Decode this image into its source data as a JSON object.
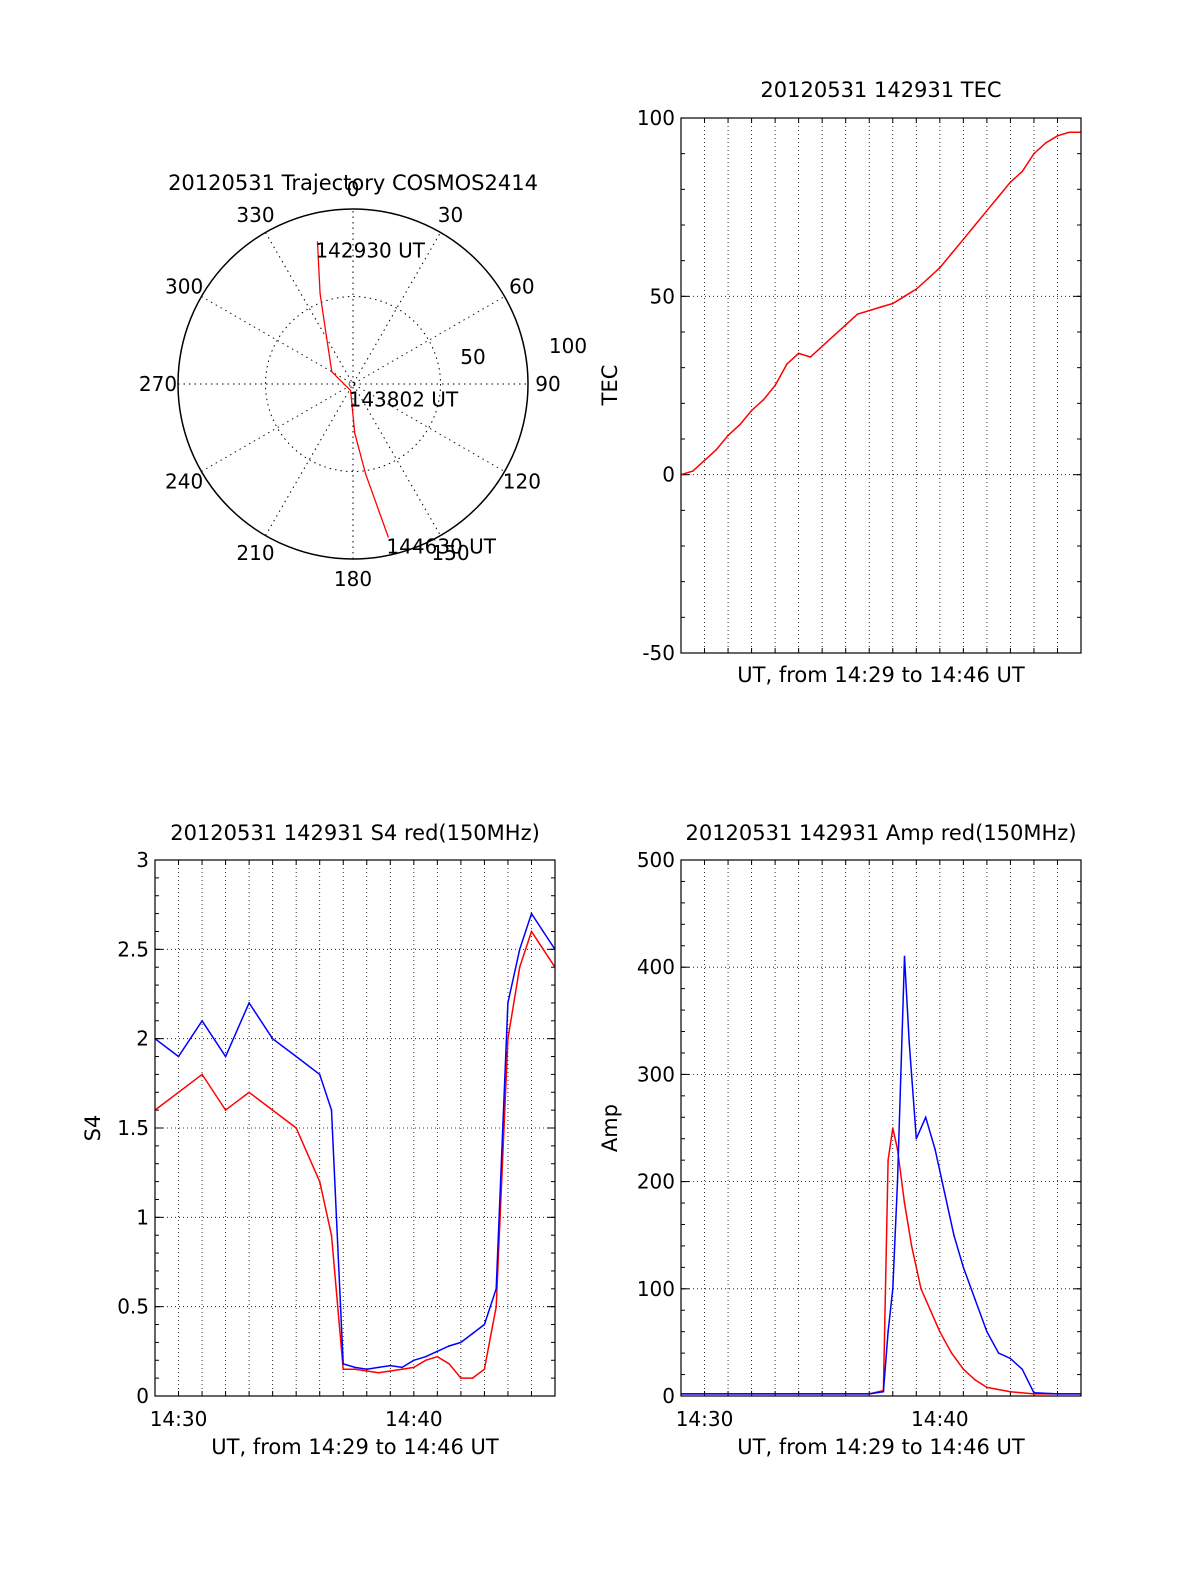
{
  "colors": {
    "red_series": "#ff0000",
    "blue_series": "#0000ff",
    "axes": "#000000",
    "grid": "#000000"
  },
  "chart_data": [
    {
      "type": "polar",
      "title": "20120531 Trajectory COSMOS2414",
      "azimuth_labels": [
        "0",
        "30",
        "60",
        "90",
        "120",
        "150",
        "180",
        "210",
        "240",
        "270",
        "300",
        "330"
      ],
      "radius_labels": [
        "50",
        "100"
      ],
      "rlim": [
        0,
        100
      ],
      "grid": true,
      "series": [
        {
          "color": "#ff0000",
          "points": [
            {
              "az": 346,
              "r": 84,
              "label": "142930 UT"
            },
            {
              "az": 340,
              "r": 55
            },
            {
              "az": 330,
              "r": 30
            },
            {
              "az": 300,
              "r": 14
            },
            {
              "az": 200,
              "r": 4,
              "label": "143802 UT"
            },
            {
              "az": 178,
              "r": 28
            },
            {
              "az": 172,
              "r": 52
            },
            {
              "az": 167,
              "r": 90,
              "label": "144630 UT"
            }
          ]
        }
      ]
    },
    {
      "type": "line",
      "title": "20120531 142931 TEC",
      "xlabel": "UT, from 14:29 to 14:46 UT",
      "ylabel": "TEC",
      "xlim": [
        0,
        17.0
      ],
      "ylim": [
        -50,
        100
      ],
      "yticks": [
        "-50",
        "0",
        "50",
        "100"
      ],
      "xticks": [],
      "grid": true,
      "series": [
        {
          "color": "#ff0000",
          "x": [
            0,
            0.5,
            1,
            1.5,
            2,
            2.5,
            3,
            3.5,
            4,
            4.5,
            5,
            5.5,
            6,
            6.5,
            7,
            7.5,
            8,
            8.5,
            9,
            9.5,
            10,
            10.5,
            11,
            11.5,
            12,
            12.5,
            13,
            13.5,
            14,
            14.5,
            15,
            15.5,
            16,
            16.5,
            17
          ],
          "y": [
            0,
            1,
            4,
            7,
            11,
            14,
            18,
            21,
            25,
            31,
            34,
            33,
            36,
            39,
            42,
            45,
            46,
            47,
            48,
            50,
            52,
            55,
            58,
            62,
            66,
            70,
            74,
            78,
            82,
            85,
            90,
            93,
            95,
            96,
            96
          ]
        }
      ]
    },
    {
      "type": "line",
      "title": "20120531 142931 S4 red(150MHz)",
      "xlabel": "UT, from 14:29 to 14:46 UT",
      "ylabel": "S4",
      "xlim": [
        0,
        17.0
      ],
      "ylim": [
        0,
        3
      ],
      "yticks": [
        "0",
        "0.5",
        "1",
        "1.5",
        "2",
        "2.5",
        "3"
      ],
      "xticks": [
        "14:30",
        "14:40"
      ],
      "xtick_positions": [
        1,
        11
      ],
      "grid": true,
      "series": [
        {
          "name": "",
          "color": "#ff0000",
          "x": [
            0,
            1,
            2,
            3,
            4,
            5,
            6,
            7,
            7.5,
            8,
            8.5,
            9,
            9.5,
            10,
            10.5,
            11,
            11.5,
            12,
            12.5,
            13,
            13.5,
            14,
            14.5,
            15,
            15.5,
            16,
            16.5,
            17
          ],
          "y": [
            1.6,
            1.7,
            1.8,
            1.6,
            1.7,
            1.6,
            1.5,
            1.2,
            0.9,
            0.15,
            0.15,
            0.14,
            0.13,
            0.14,
            0.15,
            0.16,
            0.2,
            0.22,
            0.18,
            0.1,
            0.1,
            0.15,
            0.5,
            2.0,
            2.4,
            2.6,
            2.5,
            2.4
          ]
        },
        {
          "name": "",
          "color": "#0000ff",
          "x": [
            0,
            1,
            2,
            3,
            4,
            5,
            6,
            7,
            7.5,
            8,
            8.5,
            9,
            9.5,
            10,
            10.5,
            11,
            11.5,
            12,
            12.5,
            13,
            13.5,
            14,
            14.5,
            15,
            15.5,
            16,
            16.5,
            17
          ],
          "y": [
            2.0,
            1.9,
            2.1,
            1.9,
            2.2,
            2.0,
            1.9,
            1.8,
            1.6,
            0.18,
            0.16,
            0.15,
            0.16,
            0.17,
            0.16,
            0.2,
            0.22,
            0.25,
            0.28,
            0.3,
            0.35,
            0.4,
            0.6,
            2.2,
            2.5,
            2.7,
            2.6,
            2.5
          ]
        }
      ]
    },
    {
      "type": "line",
      "title": "20120531 142931 Amp red(150MHz)",
      "xlabel": "UT, from 14:29 to 14:46 UT",
      "ylabel": "Amp",
      "xlim": [
        0,
        17.0
      ],
      "ylim": [
        0,
        500
      ],
      "yticks": [
        "0",
        "100",
        "200",
        "300",
        "400",
        "500"
      ],
      "xticks": [
        "14:30",
        "14:40"
      ],
      "xtick_positions": [
        1,
        11
      ],
      "grid": true,
      "series": [
        {
          "name": "",
          "color": "#ff0000",
          "x": [
            0,
            2,
            4,
            6,
            8,
            8.6,
            8.8,
            9.0,
            9.2,
            9.5,
            9.8,
            10.2,
            10.6,
            11.0,
            11.5,
            12,
            12.5,
            13,
            14,
            15,
            16,
            17
          ],
          "y": [
            2,
            2,
            2,
            2,
            2,
            5,
            220,
            250,
            230,
            180,
            140,
            100,
            80,
            60,
            40,
            25,
            15,
            8,
            4,
            2,
            2,
            2
          ]
        },
        {
          "name": "",
          "color": "#0000ff",
          "x": [
            0,
            2,
            4,
            6,
            8,
            8.6,
            8.8,
            9.0,
            9.2,
            9.5,
            9.7,
            10.0,
            10.4,
            10.8,
            11.2,
            11.6,
            12.0,
            12.5,
            13.0,
            13.5,
            14.0,
            14.5,
            15,
            16,
            17
          ],
          "y": [
            2,
            2,
            2,
            2,
            2,
            4,
            60,
            100,
            200,
            410,
            330,
            240,
            260,
            230,
            190,
            150,
            120,
            90,
            60,
            40,
            35,
            25,
            3,
            2,
            2
          ]
        }
      ]
    }
  ]
}
